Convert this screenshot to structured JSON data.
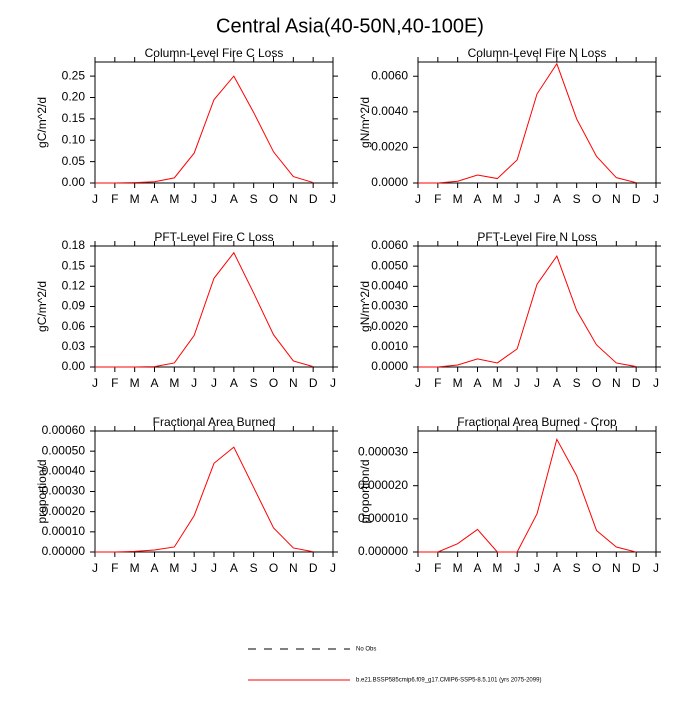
{
  "title": "Central Asia(40-50N,40-100E)",
  "chart_data": [
    {
      "type": "line",
      "title": "Column-Level Fire C Loss",
      "ylabel": "gC/m^2/d",
      "color": "#ff0000",
      "categories": [
        "J",
        "F",
        "M",
        "A",
        "M",
        "J",
        "J",
        "A",
        "S",
        "O",
        "N",
        "D",
        "J"
      ],
      "values": [
        0,
        0,
        0.001,
        0.003,
        0.012,
        0.07,
        0.195,
        0.25,
        0.165,
        0.073,
        0.015,
        0.001,
        null
      ],
      "ylim": [
        0,
        0.283
      ],
      "yticks": [
        {
          "value": 0,
          "label": "0.00"
        },
        {
          "value": 0.05,
          "label": "0.05"
        },
        {
          "value": 0.1,
          "label": "0.10"
        },
        {
          "value": 0.15,
          "label": "0.15"
        },
        {
          "value": 0.2,
          "label": "0.20"
        },
        {
          "value": 0.25,
          "label": "0.25"
        }
      ]
    },
    {
      "type": "line",
      "title": "Column-Level Fire N Loss",
      "ylabel": "gN/m^2/d",
      "color": "#ff0000",
      "categories": [
        "J",
        "F",
        "M",
        "A",
        "M",
        "J",
        "J",
        "A",
        "S",
        "O",
        "N",
        "D",
        "J"
      ],
      "values": [
        0,
        0,
        0.0001,
        0.00045,
        0.00025,
        0.0013,
        0.005,
        0.0067,
        0.0036,
        0.0015,
        0.0003,
        2e-05,
        null
      ],
      "ylim": [
        0,
        0.0068
      ],
      "yticks": [
        {
          "value": 0,
          "label": "0.0000"
        },
        {
          "value": 0.002,
          "label": "0.0020"
        },
        {
          "value": 0.004,
          "label": "0.0040"
        },
        {
          "value": 0.006,
          "label": "0.0060"
        }
      ]
    },
    {
      "type": "line",
      "title": "PFT-Level Fire C Loss",
      "ylabel": "gC/m^2/d",
      "color": "#ff0000",
      "categories": [
        "J",
        "F",
        "M",
        "A",
        "M",
        "J",
        "J",
        "A",
        "S",
        "O",
        "N",
        "D",
        "J"
      ],
      "values": [
        0,
        0,
        0,
        0.0005,
        0.006,
        0.047,
        0.132,
        0.17,
        0.11,
        0.048,
        0.009,
        0.0005,
        null
      ],
      "ylim": [
        0,
        0.18
      ],
      "yticks": [
        {
          "value": 0,
          "label": "0.00"
        },
        {
          "value": 0.03,
          "label": "0.03"
        },
        {
          "value": 0.06,
          "label": "0.06"
        },
        {
          "value": 0.09,
          "label": "0.09"
        },
        {
          "value": 0.12,
          "label": "0.12"
        },
        {
          "value": 0.15,
          "label": "0.15"
        },
        {
          "value": 0.18,
          "label": "0.18"
        }
      ]
    },
    {
      "type": "line",
      "title": "PFT-Level Fire N Loss",
      "ylabel": "gN/m^2/d",
      "color": "#ff0000",
      "categories": [
        "J",
        "F",
        "M",
        "A",
        "M",
        "J",
        "J",
        "A",
        "S",
        "O",
        "N",
        "D",
        "J"
      ],
      "values": [
        0,
        0,
        0.0001,
        0.0004,
        0.0002,
        0.0009,
        0.0041,
        0.0055,
        0.0028,
        0.0011,
        0.0002,
        2e-05,
        null
      ],
      "ylim": [
        0,
        0.006
      ],
      "yticks": [
        {
          "value": 0,
          "label": "0.0000"
        },
        {
          "value": 0.001,
          "label": "0.0010"
        },
        {
          "value": 0.002,
          "label": "0.0020"
        },
        {
          "value": 0.003,
          "label": "0.0030"
        },
        {
          "value": 0.004,
          "label": "0.0040"
        },
        {
          "value": 0.005,
          "label": "0.0050"
        },
        {
          "value": 0.006,
          "label": "0.0060"
        }
      ]
    },
    {
      "type": "line",
      "title": "Fractional Area Burned",
      "ylabel": "proportion/d",
      "color": "#ff0000",
      "categories": [
        "J",
        "F",
        "M",
        "A",
        "M",
        "J",
        "J",
        "A",
        "S",
        "O",
        "N",
        "D",
        "J"
      ],
      "values": [
        0,
        0,
        3e-06,
        1e-05,
        2.5e-05,
        0.00018,
        0.00044,
        0.00052,
        0.00032,
        0.00012,
        2e-05,
        1e-06,
        null
      ],
      "ylim": [
        0,
        0.0006
      ],
      "yticks": [
        {
          "value": 0,
          "label": "0.00000"
        },
        {
          "value": 0.0001,
          "label": "0.00010"
        },
        {
          "value": 0.0002,
          "label": "0.00020"
        },
        {
          "value": 0.0003,
          "label": "0.00030"
        },
        {
          "value": 0.0004,
          "label": "0.00040"
        },
        {
          "value": 0.0005,
          "label": "0.00050"
        },
        {
          "value": 0.0006,
          "label": "0.00060"
        }
      ]
    },
    {
      "type": "line",
      "title": "Fractional Area Burned - Crop",
      "ylabel": "proportion/d",
      "color": "#ff0000",
      "categories": [
        "J",
        "F",
        "M",
        "A",
        "M",
        "J",
        "J",
        "A",
        "S",
        "O",
        "N",
        "D",
        "J"
      ],
      "values": [
        0,
        0,
        2.5e-06,
        6.8e-06,
        0,
        0,
        1.15e-05,
        3.4e-05,
        2.3e-05,
        6.5e-06,
        1.5e-06,
        0,
        null
      ],
      "ylim": [
        0,
        3.65e-05
      ],
      "yticks": [
        {
          "value": 0,
          "label": "0.000000"
        },
        {
          "value": 1e-05,
          "label": "0.000010"
        },
        {
          "value": 2e-05,
          "label": "0.000020"
        },
        {
          "value": 3e-05,
          "label": "0.000030"
        }
      ]
    }
  ],
  "legend": [
    {
      "name": "No Obs",
      "color": "#000000",
      "dash": "8 8"
    },
    {
      "name": "b.e21.BSSP585cmip6.f09_g17.CMIP6-SSP5-8.5.101 (yrs 2075-2099)",
      "color": "#ff0000"
    }
  ]
}
